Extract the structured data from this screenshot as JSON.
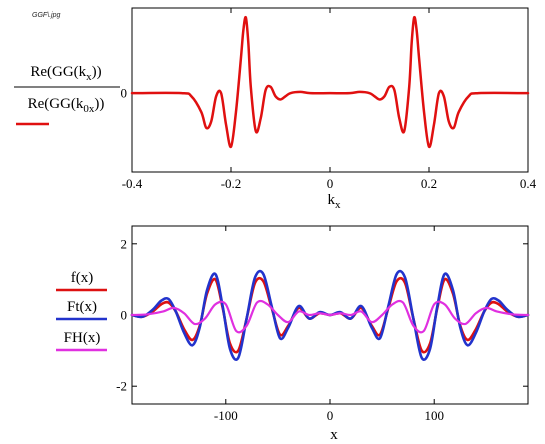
{
  "file_label": "GGF\\.jpg",
  "chart_data": [
    {
      "type": "line",
      "title": "",
      "xlabel": "k",
      "xlabel_sub": "x",
      "ylabel": {
        "numerator": {
          "pre": "Re(GG(k",
          "sub": "x",
          "post": "))"
        },
        "denominator": {
          "pre": "Re(GG(k",
          "sub": "0x",
          "post": "))"
        }
      },
      "xlim": [
        -0.4,
        0.4
      ],
      "ylim": [
        -1.25,
        1.35
      ],
      "x_ticks": [
        "-0.4",
        "-0.2",
        "0",
        "0.2",
        "0.4"
      ],
      "x_tick_values": [
        -0.4,
        -0.2,
        0,
        0.2,
        0.4
      ],
      "y_ticks": [
        "0"
      ],
      "y_tick_values": [
        0
      ],
      "grid": false,
      "legend": "left",
      "series": [
        {
          "color": "#e01010",
          "x": [
            -0.4,
            -0.3,
            -0.28,
            -0.26,
            -0.25,
            -0.24,
            -0.23,
            -0.22,
            -0.21,
            -0.2,
            -0.19,
            -0.18,
            -0.175,
            -0.17,
            -0.165,
            -0.16,
            -0.15,
            -0.14,
            -0.13,
            -0.12,
            -0.11,
            -0.1,
            -0.09,
            -0.08,
            -0.06,
            -0.04,
            0,
            0.04,
            0.06,
            0.08,
            0.09,
            0.1,
            0.11,
            0.12,
            0.13,
            0.14,
            0.15,
            0.16,
            0.165,
            0.17,
            0.175,
            0.18,
            0.19,
            0.2,
            0.21,
            0.22,
            0.23,
            0.24,
            0.25,
            0.26,
            0.28,
            0.3,
            0.4
          ],
          "y": [
            0,
            0,
            -0.05,
            -0.3,
            -0.55,
            -0.45,
            -0.05,
            0.0,
            -0.5,
            -0.85,
            -0.3,
            0.55,
            1.0,
            1.2,
            0.8,
            0.1,
            -0.6,
            -0.4,
            0.05,
            0.1,
            -0.05,
            -0.1,
            -0.05,
            0.0,
            0.02,
            0.0,
            0,
            0.0,
            0.02,
            0.0,
            -0.05,
            -0.1,
            -0.05,
            0.1,
            0.05,
            -0.4,
            -0.6,
            0.1,
            0.8,
            1.2,
            1.0,
            0.55,
            -0.3,
            -0.85,
            -0.5,
            0.0,
            -0.05,
            -0.45,
            -0.55,
            -0.3,
            -0.05,
            0,
            0
          ]
        }
      ]
    },
    {
      "type": "line",
      "title": "",
      "xlabel": "x",
      "ylabel": "",
      "xlim": [
        -190,
        190
      ],
      "ylim": [
        -2.5,
        2.5
      ],
      "x_ticks": [
        "-100",
        "0",
        "100"
      ],
      "x_tick_values": [
        -100,
        0,
        100
      ],
      "y_ticks": [
        "2",
        "0",
        "-2"
      ],
      "y_tick_values": [
        2,
        0,
        -2
      ],
      "grid": false,
      "legend": "left",
      "series": [
        {
          "name": "f(x)",
          "color": "#dd1111",
          "x": [
            -190,
            -180,
            -170,
            -162,
            -155,
            -148,
            -140,
            -132,
            -125,
            -118,
            -110,
            -103,
            -96,
            -88,
            -80,
            -72,
            -64,
            -56,
            -48,
            -40,
            -30,
            -20,
            -10,
            0,
            10,
            20,
            30,
            40,
            48,
            56,
            64,
            72,
            80,
            88,
            96,
            103,
            110,
            118,
            125,
            132,
            140,
            148,
            155,
            162,
            170,
            180,
            190
          ],
          "y": [
            0,
            -0.05,
            0.1,
            0.3,
            0.35,
            0.1,
            -0.4,
            -0.7,
            -0.3,
            0.6,
            1.0,
            0.2,
            -0.8,
            -1.0,
            -0.1,
            0.9,
            0.95,
            0.2,
            -0.55,
            -0.3,
            0.2,
            -0.1,
            0.05,
            0,
            0.05,
            -0.1,
            0.2,
            -0.3,
            -0.55,
            0.2,
            0.95,
            0.9,
            -0.1,
            -1.0,
            -0.8,
            0.2,
            1.0,
            0.6,
            -0.3,
            -0.7,
            -0.4,
            0.1,
            0.35,
            0.3,
            0.1,
            -0.05,
            0
          ]
        },
        {
          "name": "Ft(x)",
          "color": "#2233cc",
          "x": [
            -190,
            -180,
            -170,
            -162,
            -155,
            -148,
            -140,
            -132,
            -125,
            -118,
            -110,
            -103,
            -96,
            -88,
            -80,
            -72,
            -64,
            -56,
            -48,
            -40,
            -30,
            -20,
            -10,
            0,
            10,
            20,
            30,
            40,
            48,
            56,
            64,
            72,
            80,
            88,
            96,
            103,
            110,
            118,
            125,
            132,
            140,
            148,
            155,
            162,
            170,
            180,
            190
          ],
          "y": [
            0,
            -0.05,
            0.15,
            0.4,
            0.45,
            0.1,
            -0.5,
            -0.85,
            -0.35,
            0.7,
            1.15,
            0.25,
            -0.95,
            -1.2,
            -0.1,
            1.05,
            1.15,
            0.25,
            -0.65,
            -0.35,
            0.25,
            -0.1,
            0.08,
            0,
            0.08,
            -0.1,
            0.25,
            -0.35,
            -0.65,
            0.25,
            1.15,
            1.05,
            -0.1,
            -1.2,
            -0.95,
            0.25,
            1.15,
            0.7,
            -0.35,
            -0.85,
            -0.5,
            0.1,
            0.45,
            0.4,
            0.15,
            -0.05,
            0
          ]
        },
        {
          "name": "FH(x)",
          "color": "#e030e0",
          "x": [
            -190,
            -175,
            -160,
            -150,
            -140,
            -130,
            -120,
            -110,
            -100,
            -90,
            -80,
            -70,
            -60,
            -50,
            -40,
            -30,
            -20,
            -10,
            0,
            10,
            20,
            30,
            40,
            50,
            60,
            70,
            80,
            90,
            100,
            110,
            120,
            130,
            140,
            150,
            160,
            175,
            190
          ],
          "y": [
            0,
            0.02,
            0.1,
            0.2,
            0.05,
            -0.25,
            -0.1,
            0.3,
            0.3,
            -0.45,
            -0.3,
            0.35,
            0.3,
            0.0,
            -0.2,
            0.1,
            0.0,
            0.05,
            0.0,
            0.05,
            0.0,
            0.1,
            -0.2,
            0.0,
            0.3,
            0.35,
            -0.3,
            -0.45,
            0.3,
            0.3,
            -0.1,
            -0.25,
            0.05,
            0.2,
            0.1,
            0.02,
            0
          ]
        }
      ]
    }
  ]
}
